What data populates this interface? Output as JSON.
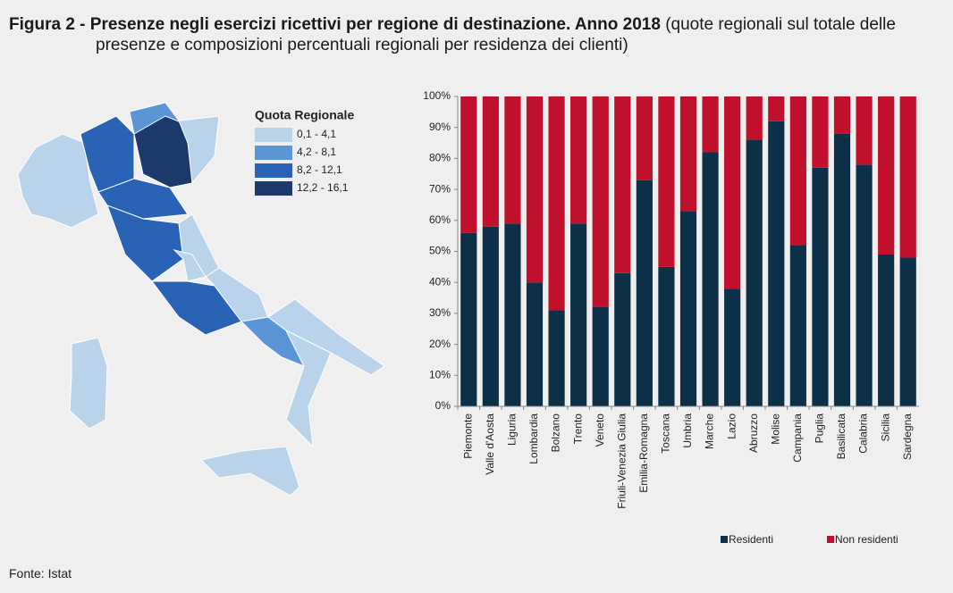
{
  "figure": {
    "title": "Figura 2 - Presenze negli esercizi ricettivi per regione di destinazione. Anno 2018",
    "subtitle": "(quote regionali sul totale delle presenze e composizioni percentuali regionali per residenza dei clienti)",
    "source": "Fonte: Istat"
  },
  "chart_data": [
    {
      "type": "bar",
      "stacked": true,
      "categories": [
        "Piemonte",
        "Valle d'Aosta",
        "Liguria",
        "Lombardia",
        "Bolzano",
        "Trento",
        "Veneto",
        "Friuli-Venezia Giulia",
        "Emilia-Romagna",
        "Toscana",
        "Umbria",
        "Marche",
        "Lazio",
        "Abruzzo",
        "Molise",
        "Campania",
        "Puglia",
        "Basilicata",
        "Calabria",
        "Sicilia",
        "Sardegna"
      ],
      "series": [
        {
          "name": "Residenti",
          "color": "#0d3049",
          "values": [
            56,
            58,
            59,
            40,
            31,
            59,
            32,
            43,
            73,
            45,
            63,
            82,
            38,
            86,
            92,
            52,
            77,
            88,
            78,
            49,
            48
          ]
        },
        {
          "name": "Non residenti",
          "color": "#c0102b",
          "values": [
            44,
            42,
            41,
            60,
            69,
            41,
            68,
            57,
            27,
            55,
            37,
            18,
            62,
            14,
            8,
            48,
            23,
            12,
            22,
            51,
            52
          ]
        }
      ],
      "ylim": [
        0,
        100
      ],
      "yticks": [
        {
          "value": 0,
          "label": "0%"
        },
        {
          "value": 10,
          "label": "10%"
        },
        {
          "value": 20,
          "label": "20%"
        },
        {
          "value": 30,
          "label": "30%"
        },
        {
          "value": 40,
          "label": "40%"
        },
        {
          "value": 50,
          "label": "50%"
        },
        {
          "value": 60,
          "label": "60%"
        },
        {
          "value": 70,
          "label": "70%"
        },
        {
          "value": 80,
          "label": "80%"
        },
        {
          "value": 90,
          "label": "90%"
        },
        {
          "value": 100,
          "label": "100%"
        }
      ],
      "grid": false,
      "legend": "bottom"
    },
    {
      "type": "map",
      "legend_title": "Quota Regionale",
      "classes": [
        {
          "label": "0,1 - 4,1",
          "color": "#b9d3ea"
        },
        {
          "label": "4,2 - 8,1",
          "color": "#5b95d6"
        },
        {
          "label": "8,2 - 12,1",
          "color": "#2a62b5"
        },
        {
          "label": "12,2 - 16,1",
          "color": "#1b3a6b"
        }
      ]
    }
  ]
}
